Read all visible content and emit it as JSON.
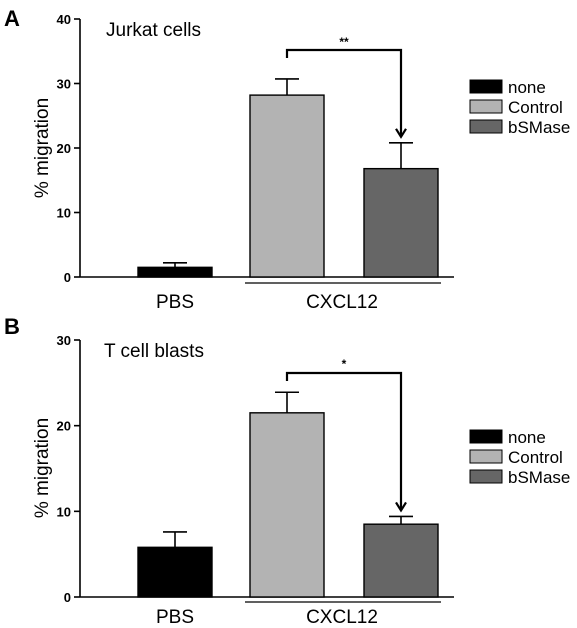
{
  "colors": {
    "none": "#000000",
    "Control": "#b3b3b3",
    "bSMase": "#666666",
    "axis": "#000000"
  },
  "chart_data": [
    {
      "type": "bar",
      "panel": "A",
      "title": "Jurkat cells",
      "ylabel": "% migration",
      "ylim": [
        0,
        40
      ],
      "yticks": [
        0,
        10,
        20,
        30,
        40
      ],
      "group_labels": [
        "PBS",
        "CXCL12"
      ],
      "legend": [
        "none",
        "Control",
        "bSMase"
      ],
      "legend_position": "right",
      "bars": [
        {
          "group": "PBS",
          "series": "none",
          "value": 1.5,
          "error": 0.7
        },
        {
          "group": "CXCL12",
          "series": "Control",
          "value": 28.2,
          "error": 2.5
        },
        {
          "group": "CXCL12",
          "series": "bSMase",
          "value": 16.8,
          "error": 4.0
        }
      ],
      "significance": {
        "between": [
          "Control",
          "bSMase"
        ],
        "label": "**"
      }
    },
    {
      "type": "bar",
      "panel": "B",
      "title": "T cell blasts",
      "ylabel": "% migration",
      "ylim": [
        0,
        30
      ],
      "yticks": [
        0,
        10,
        20,
        30
      ],
      "group_labels": [
        "PBS",
        "CXCL12"
      ],
      "legend": [
        "none",
        "Control",
        "bSMase"
      ],
      "legend_position": "right",
      "bars": [
        {
          "group": "PBS",
          "series": "none",
          "value": 5.8,
          "error": 1.8
        },
        {
          "group": "CXCL12",
          "series": "Control",
          "value": 21.5,
          "error": 2.4
        },
        {
          "group": "CXCL12",
          "series": "bSMase",
          "value": 8.5,
          "error": 0.9
        }
      ],
      "significance": {
        "between": [
          "Control",
          "bSMase"
        ],
        "label": "*"
      }
    }
  ]
}
